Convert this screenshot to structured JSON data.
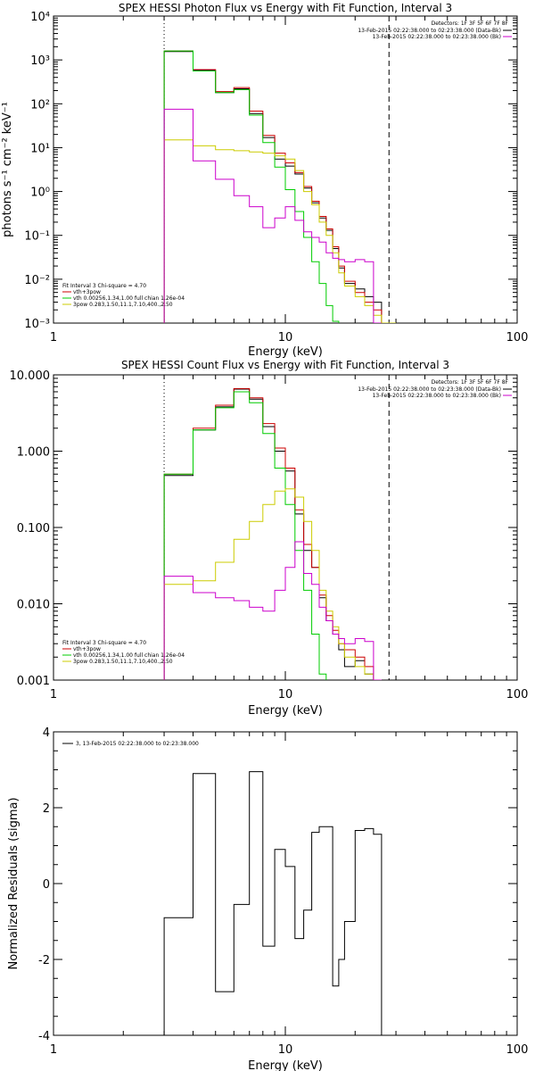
{
  "chart_data": [
    {
      "type": "line",
      "title": "SPEX HESSI Photon Flux vs Energy with Fit Function, Interval 3",
      "xlabel": "Energy (keV)",
      "ylabel": "photons s⁻¹ cm⁻² keV⁻¹",
      "xscale": "log",
      "yscale": "log",
      "xlim": [
        1,
        100
      ],
      "ylim": [
        0.001,
        10000
      ],
      "x_ticks": [
        "1",
        "10",
        "100"
      ],
      "y_ticks": [
        "10⁻³",
        "10⁻²",
        "10⁻¹",
        "10⁰",
        "10¹",
        "10²",
        "10³",
        "10⁴"
      ],
      "legend_top_right": {
        "detectors": "Detectors: 1F 3F 5F 6F 7F 8F",
        "items": [
          {
            "text": "13-Feb-2015 02:22:38.000 to 02:23:38.000 (Data-Bk)",
            "color": "#000000"
          },
          {
            "text": "13-Feb-2015 02:22:38.000 to 02:23:38.000 (Bk)",
            "color": "#cc00cc"
          }
        ]
      },
      "legend_bottom_left": {
        "header": "Fit Interval 3   Chi-square = 4.70",
        "items": [
          {
            "text": "vth+3pow",
            "color": "#cc0000"
          },
          {
            "text": "vth 0.00256,1.34,1.00  full chian 1.26e-04",
            "color": "#00cc00"
          },
          {
            "text": "3pow 0.283,1.50,11.1,7.10,400.,2.50",
            "color": "#cccc00"
          }
        ]
      },
      "vlines": [
        {
          "x": 3.0,
          "style": "dotted"
        },
        {
          "x": 28.0,
          "style": "dashed"
        }
      ],
      "edges": [
        3,
        4,
        5,
        6,
        7,
        8,
        9,
        10,
        11,
        12,
        13,
        14,
        15,
        16,
        17,
        18,
        20,
        22,
        24,
        26,
        28,
        30,
        32
      ],
      "series": [
        {
          "name": "Data-Bk",
          "color": "#000000",
          "values": [
            1550,
            580,
            180,
            220,
            60,
            17,
            5.5,
            3.8,
            2.5,
            1.2,
            0.55,
            0.25,
            0.13,
            0.05,
            0.018,
            0.008,
            0.006,
            0.004,
            0.003,
            null,
            null,
            null
          ]
        },
        {
          "name": "vth+3pow",
          "color": "#cc0000",
          "values": [
            1600,
            600,
            190,
            235,
            68,
            19,
            7.5,
            4.5,
            2.7,
            1.3,
            0.6,
            0.27,
            0.14,
            0.055,
            0.02,
            0.009,
            0.005,
            0.003,
            0.002,
            null,
            null,
            null
          ]
        },
        {
          "name": "vth",
          "color": "#00cc00",
          "values": [
            1600,
            560,
            180,
            210,
            55,
            13,
            3.6,
            1.1,
            0.35,
            0.09,
            0.025,
            0.008,
            0.0025,
            0.0011,
            null,
            null,
            null,
            null,
            null,
            null,
            null,
            null
          ]
        },
        {
          "name": "3pow",
          "color": "#cccc00",
          "values": [
            15,
            11,
            9.0,
            8.5,
            8.0,
            7.5,
            6.5,
            5.5,
            3.0,
            1.0,
            0.5,
            0.2,
            0.1,
            0.04,
            0.014,
            0.007,
            0.004,
            0.0025,
            0.0015,
            0.001,
            0.0008,
            null
          ]
        },
        {
          "name": "Bk",
          "color": "#cc00cc",
          "values": [
            75,
            5,
            1.9,
            0.8,
            0.45,
            0.15,
            0.25,
            0.45,
            0.22,
            0.12,
            0.09,
            0.07,
            0.04,
            0.03,
            0.028,
            0.025,
            0.028,
            0.025,
            0.001,
            null,
            null,
            null
          ]
        }
      ]
    },
    {
      "type": "line",
      "title": "SPEX HESSI Count Flux vs Energy with Fit Function, Interval 3",
      "xlabel": "Energy (keV)",
      "ylabel": "",
      "xscale": "log",
      "yscale": "log",
      "xlim": [
        1,
        100
      ],
      "ylim": [
        0.001,
        10
      ],
      "x_ticks": [
        "1",
        "10",
        "100"
      ],
      "y_ticks": [
        "0.001",
        "0.010",
        "0.100",
        "1.000",
        "10.000"
      ],
      "legend_top_right": {
        "detectors": "Detectors: 1F 3F 5F 6F 7F 8F",
        "items": [
          {
            "text": "13-Feb-2015 02:22:38.000 to 02:23:38.000 (Data-Bk)",
            "color": "#000000"
          },
          {
            "text": "13-Feb-2015 02:22:38.000 to 02:23:38.000 (Bk)",
            "color": "#cc00cc"
          }
        ]
      },
      "legend_bottom_left": {
        "header": "Fit Interval 3   Chi-square = 4.70",
        "items": [
          {
            "text": "vth+3pow",
            "color": "#cc0000"
          },
          {
            "text": "vth 0.00256,1.34,1.00  full chian 1.26e-04",
            "color": "#00cc00"
          },
          {
            "text": "3pow 0.283,1.50,11.1,7.10,400.,2.50",
            "color": "#cccc00"
          }
        ]
      },
      "vlines": [
        {
          "x": 3.0,
          "style": "dotted"
        },
        {
          "x": 28.0,
          "style": "dashed"
        }
      ],
      "edges": [
        3,
        4,
        5,
        6,
        7,
        8,
        9,
        10,
        11,
        12,
        13,
        14,
        15,
        16,
        17,
        18,
        20,
        22,
        24,
        26,
        28,
        30,
        32
      ],
      "series": [
        {
          "name": "Data-Bk",
          "color": "#000000",
          "values": [
            0.48,
            1.9,
            3.8,
            6.5,
            4.8,
            2.1,
            1.0,
            0.55,
            0.15,
            0.05,
            0.03,
            0.012,
            0.006,
            0.004,
            0.0025,
            0.0015,
            0.0018,
            0.0012,
            0.001,
            null,
            null,
            null
          ]
        },
        {
          "name": "vth+3pow",
          "color": "#cc0000",
          "values": [
            0.5,
            2.0,
            4.0,
            6.6,
            5.0,
            2.3,
            1.1,
            0.6,
            0.17,
            0.06,
            0.03,
            0.013,
            0.007,
            0.0045,
            0.003,
            0.0025,
            0.002,
            0.0015,
            0.001,
            null,
            null,
            null
          ]
        },
        {
          "name": "vth",
          "color": "#00cc00",
          "values": [
            0.5,
            1.9,
            3.7,
            6.0,
            4.3,
            1.7,
            0.6,
            0.2,
            0.05,
            0.015,
            0.004,
            0.0012,
            null,
            null,
            null,
            null,
            null,
            null,
            null,
            null,
            null,
            null
          ]
        },
        {
          "name": "3pow",
          "color": "#cccc00",
          "values": [
            0.018,
            0.02,
            0.035,
            0.07,
            0.12,
            0.2,
            0.3,
            0.32,
            0.25,
            0.12,
            0.05,
            0.015,
            0.008,
            0.005,
            0.003,
            0.002,
            0.0015,
            0.0012,
            0.001,
            null,
            null,
            null
          ]
        },
        {
          "name": "Bk",
          "color": "#cc00cc",
          "values": [
            0.023,
            0.014,
            0.012,
            0.011,
            0.009,
            0.008,
            0.015,
            0.03,
            0.065,
            0.025,
            0.018,
            0.009,
            0.006,
            0.004,
            0.0035,
            0.003,
            0.0035,
            0.0032,
            0.001,
            null,
            null,
            null
          ]
        }
      ]
    },
    {
      "type": "line",
      "title": "",
      "xlabel": "Energy (keV)",
      "ylabel": "Normalized Residuals (sigma)",
      "xscale": "log",
      "yscale": "linear",
      "xlim": [
        1,
        100
      ],
      "ylim": [
        -4,
        4
      ],
      "x_ticks": [
        "1",
        "10",
        "100"
      ],
      "y_ticks": [
        "-4",
        "-2",
        "0",
        "2",
        "4"
      ],
      "legend_top_left": {
        "items": [
          {
            "text": "3, 13-Feb-2015 02:22:38.000 to 02:23:38.000",
            "color": "#000000"
          }
        ]
      },
      "edges": [
        3,
        4,
        5,
        6,
        7,
        8,
        9,
        10,
        11,
        12,
        13,
        14,
        15,
        16,
        17,
        18,
        20,
        22,
        24,
        26,
        28
      ],
      "series": [
        {
          "name": "3, 13-Feb-2015 02:22:38.000 to 02:23:38.000",
          "color": "#000000",
          "values": [
            -0.9,
            2.9,
            -2.85,
            -0.55,
            2.95,
            -1.65,
            0.9,
            0.45,
            -1.45,
            -0.7,
            1.35,
            1.5,
            1.5,
            -2.7,
            -2.0,
            -1.0,
            1.4,
            1.45,
            1.3,
            null
          ]
        }
      ]
    }
  ]
}
